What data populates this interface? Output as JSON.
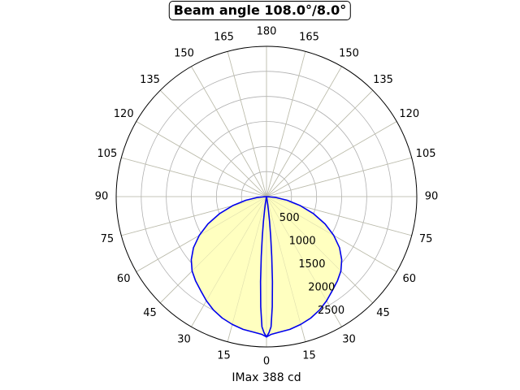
{
  "chart_data": {
    "type": "polar",
    "title": "Beam angle 108.0°/8.0°",
    "xlabel": "IMax 388 cd",
    "rlim": [
      0,
      3000
    ],
    "radial_ticks": [
      500,
      1000,
      1500,
      2000,
      2500
    ],
    "radial_gridlines": [
      500,
      1000,
      1500,
      2000,
      2500
    ],
    "angle_ticks_left": [
      "0",
      "15",
      "30",
      "45",
      "60",
      "75",
      "90",
      "105",
      "120",
      "135",
      "150",
      "165",
      "180"
    ],
    "angle_ticks_right": [
      "15",
      "30",
      "45",
      "60",
      "75",
      "90",
      "105",
      "120",
      "135",
      "150",
      "165"
    ],
    "grid": true,
    "zero_direction": "bottom",
    "line_color": "#0000ee",
    "fill_color": "#ffffc0",
    "series": [
      {
        "curve": "C0-180",
        "angles_deg": [
          0,
          2,
          5,
          10,
          15,
          20,
          25,
          30,
          35,
          40,
          45,
          50,
          55,
          60,
          65,
          70,
          75,
          80,
          85,
          90
        ],
        "values": [
          2800,
          2750,
          2720,
          2690,
          2640,
          2580,
          2500,
          2400,
          2290,
          2200,
          2100,
          1960,
          1780,
          1550,
          1290,
          1000,
          700,
          420,
          180,
          0
        ]
      },
      {
        "curve": "C90-270",
        "angles_deg": [
          0,
          1,
          2,
          3,
          4,
          5,
          6,
          7,
          8,
          9,
          10,
          11
        ],
        "values": [
          2800,
          2720,
          2600,
          2200,
          1700,
          1200,
          800,
          500,
          280,
          150,
          60,
          0
        ]
      }
    ]
  }
}
